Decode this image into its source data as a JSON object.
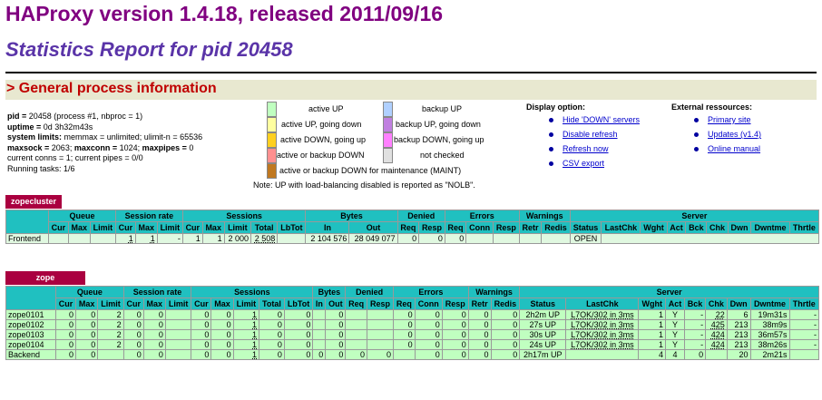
{
  "header": {
    "title": "HAProxy version 1.4.18, released 2011/09/16",
    "subtitle": "Statistics Report for pid 20458",
    "section": "> General process information"
  },
  "process": {
    "pid_label": "pid = ",
    "pid_value": "20458 (process #1, nbproc = 1)",
    "uptime_label": "uptime = ",
    "uptime_value": "0d 3h32m43s",
    "limits_label": "system limits:",
    "limits_value": " memmax = unlimited; ulimit-n = 65536",
    "maxsock_label": "maxsock = ",
    "maxsock_value": "2063; ",
    "maxconn_label": "maxconn = ",
    "maxconn_value": "1024; ",
    "maxpipes_label": "maxpipes = ",
    "maxpipes_value": "0",
    "conns": "current conns = 1; current pipes = 0/0",
    "tasks": "Running tasks: 1/6"
  },
  "legend": {
    "left": [
      {
        "label": "active UP",
        "color": "#c0ffc0"
      },
      {
        "label": "active UP, going down",
        "color": "#ffffa0"
      },
      {
        "label": "active DOWN, going up",
        "color": "#ffd020"
      },
      {
        "label": "active or backup DOWN",
        "color": "#ff9090"
      },
      {
        "label": "active or backup DOWN for maintenance (MAINT)",
        "color": "#c07820"
      }
    ],
    "right": [
      {
        "label": "backup UP",
        "color": "#b0d0ff"
      },
      {
        "label": "backup UP, going down",
        "color": "#c080e0"
      },
      {
        "label": "backup DOWN, going up",
        "color": "#ff80ff"
      },
      {
        "label": "not checked",
        "color": "#e0e0e0"
      }
    ],
    "note": "Note: UP with load-balancing disabled is reported as \"NOLB\"."
  },
  "display": {
    "heading": "Display option:",
    "links": [
      "Hide 'DOWN' servers",
      "Disable refresh",
      "Refresh now",
      "CSV export"
    ]
  },
  "external": {
    "heading": "External ressources:",
    "links": [
      "Primary site",
      "Updates (v1.4)",
      "Online manual"
    ]
  },
  "proxy1": {
    "name": "zopecluster",
    "groups": [
      "Queue",
      "Session rate",
      "Sessions",
      "Bytes",
      "Denied",
      "Errors",
      "Warnings",
      "Server"
    ],
    "cols": [
      "Cur",
      "Max",
      "Limit",
      "Cur",
      "Max",
      "Limit",
      "Cur",
      "Max",
      "Limit",
      "Total",
      "LbTot",
      "In",
      "Out",
      "Req",
      "Resp",
      "Req",
      "Conn",
      "Resp",
      "Retr",
      "Redis",
      "Status",
      "LastChk",
      "Wght",
      "Act",
      "Bck",
      "Chk",
      "Dwn",
      "Dwntme",
      "Thrtle"
    ],
    "frontend": [
      "Frontend",
      "",
      "",
      "",
      "1",
      "1",
      "-",
      "1",
      "1",
      "2 000",
      "2 508",
      "",
      "2 104 576",
      "28 049 077",
      "0",
      "0",
      "0",
      "",
      "",
      "",
      "",
      "OPEN"
    ]
  },
  "proxy2": {
    "name": "zope",
    "groups": [
      "Queue",
      "Session rate",
      "Sessions",
      "Bytes",
      "Denied",
      "Errors",
      "Warnings",
      "Server"
    ],
    "cols": [
      "Cur",
      "Max",
      "Limit",
      "Cur",
      "Max",
      "Limit",
      "Cur",
      "Max",
      "Limit",
      "Total",
      "LbTot",
      "In",
      "Out",
      "Req",
      "Resp",
      "Req",
      "Conn",
      "Resp",
      "Retr",
      "Redis",
      "Status",
      "LastChk",
      "Wght",
      "Act",
      "Bck",
      "Chk",
      "Dwn",
      "Dwntme",
      "Thrtle"
    ],
    "rows": [
      [
        "zope0101",
        "0",
        "0",
        "2",
        "0",
        "0",
        "",
        "0",
        "0",
        "1",
        "0",
        "0",
        "",
        "0",
        "",
        "",
        "0",
        "0",
        "0",
        "0",
        "0",
        "2h2m UP",
        "L7OK/302 in 3ms",
        "1",
        "Y",
        "-",
        "22",
        "6",
        "19m31s",
        "-"
      ],
      [
        "zope0102",
        "0",
        "0",
        "2",
        "0",
        "0",
        "",
        "0",
        "0",
        "1",
        "0",
        "0",
        "",
        "0",
        "",
        "",
        "0",
        "0",
        "0",
        "0",
        "0",
        "27s UP",
        "L7OK/302 in 3ms",
        "1",
        "Y",
        "-",
        "425",
        "213",
        "38m9s",
        "-"
      ],
      [
        "zope0103",
        "0",
        "0",
        "2",
        "0",
        "0",
        "",
        "0",
        "0",
        "1",
        "0",
        "0",
        "",
        "0",
        "",
        "",
        "0",
        "0",
        "0",
        "0",
        "0",
        "30s UP",
        "L7OK/302 in 3ms",
        "1",
        "Y",
        "-",
        "424",
        "213",
        "36m57s",
        "-"
      ],
      [
        "zope0104",
        "0",
        "0",
        "2",
        "0",
        "0",
        "",
        "0",
        "0",
        "1",
        "0",
        "0",
        "",
        "0",
        "",
        "",
        "0",
        "0",
        "0",
        "0",
        "0",
        "24s UP",
        "L7OK/302 in 3ms",
        "1",
        "Y",
        "-",
        "424",
        "213",
        "38m26s",
        "-"
      ]
    ],
    "backend": [
      "Backend",
      "0",
      "0",
      "",
      "0",
      "0",
      "",
      "0",
      "0",
      "1",
      "0",
      "0",
      "0",
      "0",
      "0",
      "0",
      "",
      "0",
      "0",
      "0",
      "0",
      "2h17m UP",
      "",
      "4",
      "4",
      "0",
      "",
      "20",
      "2m21s",
      ""
    ]
  }
}
